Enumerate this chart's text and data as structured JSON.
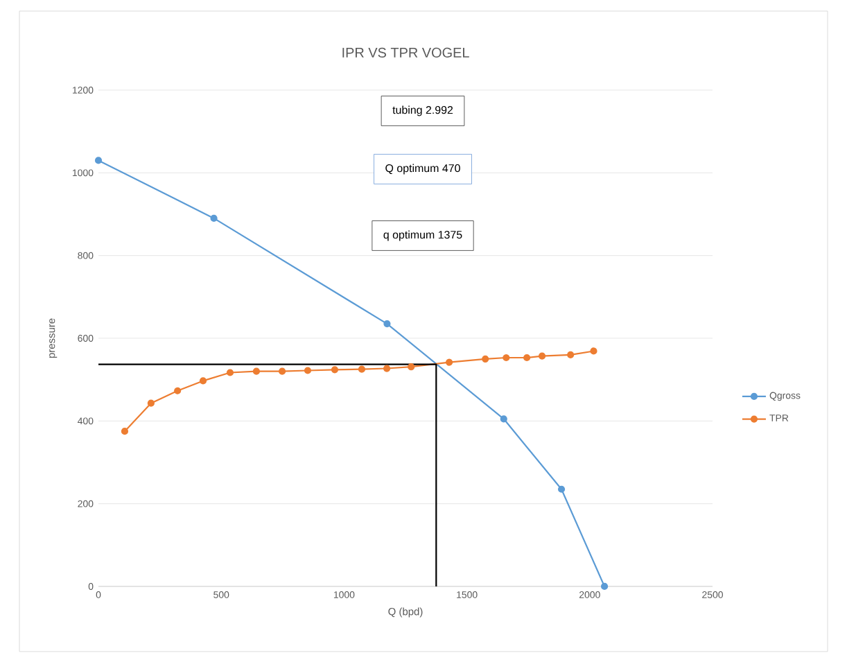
{
  "chart_data": {
    "type": "line",
    "title": "IPR VS TPR  VOGEL",
    "xlabel": "Q (bpd)",
    "ylabel": "pressure",
    "xlim": [
      0,
      2500
    ],
    "xticks": [
      0,
      500,
      1000,
      1500,
      2000,
      2500
    ],
    "ylim": [
      0,
      1200
    ],
    "yticks": [
      0,
      200,
      400,
      600,
      800,
      1000,
      1200
    ],
    "grid": "y",
    "legend": "right",
    "marker": "circle",
    "annotations": [
      "tubing 2.992",
      "Q optimum 470",
      "q optimum 1375"
    ],
    "series": [
      {
        "name": "Qgross",
        "color": "#5b9bd5",
        "x": [
          0,
          470,
          1175,
          1650,
          1885,
          2060
        ],
        "values": [
          1030,
          890,
          635,
          405,
          235,
          0
        ]
      },
      {
        "name": "TPR",
        "color": "#ed7d31",
        "x": [
          107,
          214,
          322,
          426,
          536,
          643,
          748,
          852,
          962,
          1072,
          1174,
          1273,
          1428,
          1575,
          1660,
          1744,
          1806,
          1922,
          2016
        ],
        "values": [
          375,
          443,
          473,
          497,
          517,
          520,
          520,
          522,
          524,
          525,
          527,
          531,
          542,
          550,
          553,
          553,
          557,
          560,
          569
        ]
      },
      {
        "color": "#000000",
        "marker": "none",
        "x": [
          0,
          1375,
          1375
        ],
        "values": [
          537,
          537,
          0
        ]
      }
    ]
  }
}
